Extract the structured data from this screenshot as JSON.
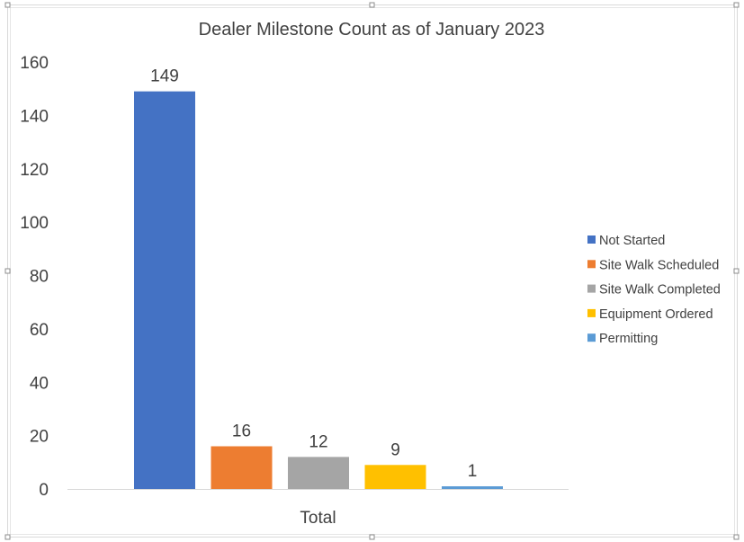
{
  "chart_data": {
    "type": "bar",
    "title": "Dealer Milestone Count as of January 2023",
    "categories": [
      "Total"
    ],
    "xlabel": "",
    "ylabel": "",
    "ylim": [
      0,
      160
    ],
    "yticks": [
      "0",
      "20",
      "40",
      "60",
      "80",
      "100",
      "120",
      "140",
      "160"
    ],
    "grid": false,
    "legend_position": "right",
    "series": [
      {
        "name": "Not Started",
        "values": [
          149
        ],
        "label": "149",
        "color": "#4472C4"
      },
      {
        "name": "Site Walk Scheduled",
        "values": [
          16
        ],
        "label": "16",
        "color": "#ED7D31"
      },
      {
        "name": "Site Walk Completed",
        "values": [
          12
        ],
        "label": "12",
        "color": "#A5A5A5"
      },
      {
        "name": "Equipment Ordered",
        "values": [
          9
        ],
        "label": "9",
        "color": "#FFC000"
      },
      {
        "name": "Permitting",
        "values": [
          1
        ],
        "label": "1",
        "color": "#5B9BD5"
      }
    ]
  }
}
